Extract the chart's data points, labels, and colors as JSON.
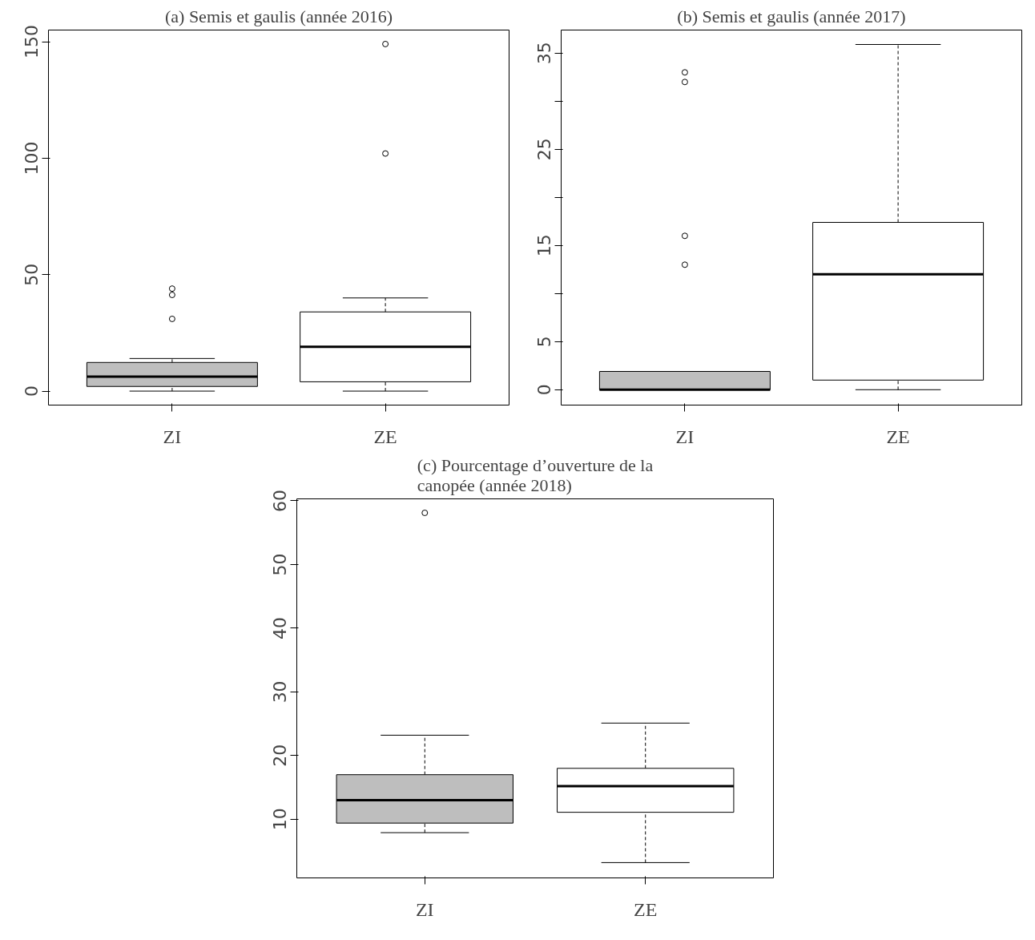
{
  "chart_data": [
    {
      "type": "box",
      "title": "(a) Semis et gaulis (année 2016)",
      "categories": [
        "ZI",
        "ZE"
      ],
      "colors": [
        "#bebebe",
        "#ffffff"
      ],
      "boxes": [
        {
          "low": 0,
          "q1": 2,
          "median": 6.2,
          "q3": 12.3,
          "high": 14,
          "outliers": [
            31,
            41.3,
            44
          ]
        },
        {
          "low": 0,
          "q1": 4,
          "median": 19,
          "q3": 34,
          "high": 40,
          "outliers": [
            102,
            149
          ]
        }
      ],
      "ylim": [
        -6,
        155
      ],
      "yticks": [
        0,
        50,
        100,
        150
      ]
    },
    {
      "type": "box",
      "title": "(b) Semis et gaulis (année 2017)",
      "categories": [
        "ZI",
        "ZE"
      ],
      "colors": [
        "#bebebe",
        "#ffffff"
      ],
      "boxes": [
        {
          "low": 0,
          "q1": 0,
          "median": 0,
          "q3": 1.9,
          "high": 1.9,
          "outliers": [
            13,
            16,
            32,
            33
          ]
        },
        {
          "low": 0,
          "q1": 1,
          "median": 12,
          "q3": 17.4,
          "high": 35.9
        }
      ],
      "ylim": [
        -1.6,
        37.4
      ],
      "yticks": [
        0,
        5,
        {
          "value": 10,
          "label": null
        },
        15,
        {
          "value": 20,
          "label": null
        },
        25,
        {
          "value": 30,
          "label": null
        },
        35
      ]
    },
    {
      "type": "box",
      "title": "(c) Pourcentage d’ouverture de la canopée (année 2018)",
      "categories": [
        "ZI",
        "ZE"
      ],
      "colors": [
        "#bebebe",
        "#ffffff"
      ],
      "boxes": [
        {
          "low": 7.9,
          "q1": 9.4,
          "median": 13,
          "q3": 17,
          "high": 23.2,
          "outliers": [
            58.1
          ]
        },
        {
          "low": 3.2,
          "q1": 11.1,
          "median": 15.2,
          "q3": 18,
          "high": 25.1
        }
      ],
      "ylim": [
        0.8,
        60.3
      ],
      "yticks": [
        10,
        20,
        30,
        40,
        50,
        60
      ]
    }
  ]
}
